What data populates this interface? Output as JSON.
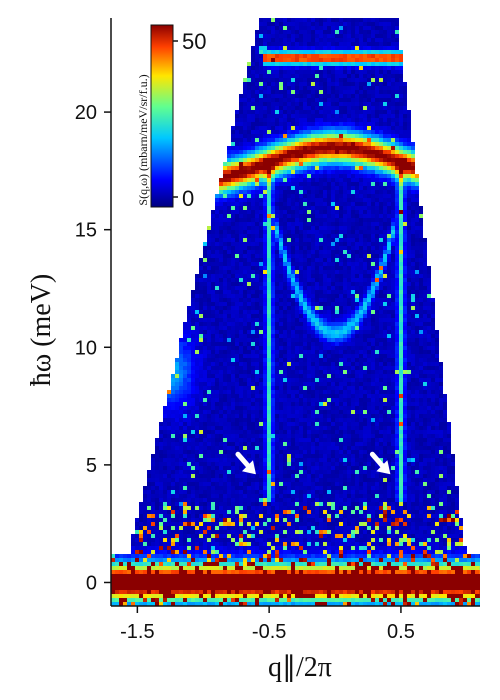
{
  "chart_data": {
    "type": "heatmap",
    "title": "",
    "xlabel": "q∥/2π",
    "ylabel": "ħω (meV)",
    "xlim": [
      -1.7,
      1.1
    ],
    "ylim": [
      -1,
      24
    ],
    "x_ticks": [
      -1.5,
      -0.5,
      0.5
    ],
    "x_tick_labels": [
      "-1.5",
      "-0.5",
      "0.5"
    ],
    "y_ticks": [
      0,
      5,
      10,
      15,
      20
    ],
    "y_tick_labels": [
      "0",
      "5",
      "10",
      "15",
      "20"
    ],
    "colorbar": {
      "label": "S(q,ω)  (mbarn/meV/sr/f.u.)",
      "min": 0,
      "max": 50,
      "tick_labels": [
        "50",
        "0"
      ],
      "colors": [
        "#00007f",
        "#0000ff",
        "#00c8ff",
        "#60ff90",
        "#ffe600",
        "#ff4000",
        "#8b0000"
      ]
    },
    "features": {
      "elastic_line_energy": 0,
      "flat_band_energy": 17.8,
      "upper_band_energy": 22.3,
      "lower_arc": {
        "center_q": 0.0,
        "bottom_energy": 10.6,
        "half_width": 0.45
      },
      "vertical_modes_q": [
        -0.5,
        0.5
      ],
      "vertical_modes_energy_range": [
        3.5,
        18
      ]
    },
    "annotations": [
      {
        "type": "arrow",
        "q": -0.6,
        "energy": 4.6,
        "direction": "down-right"
      },
      {
        "type": "arrow",
        "q": 0.42,
        "energy": 4.6,
        "direction": "down-right"
      }
    ]
  }
}
